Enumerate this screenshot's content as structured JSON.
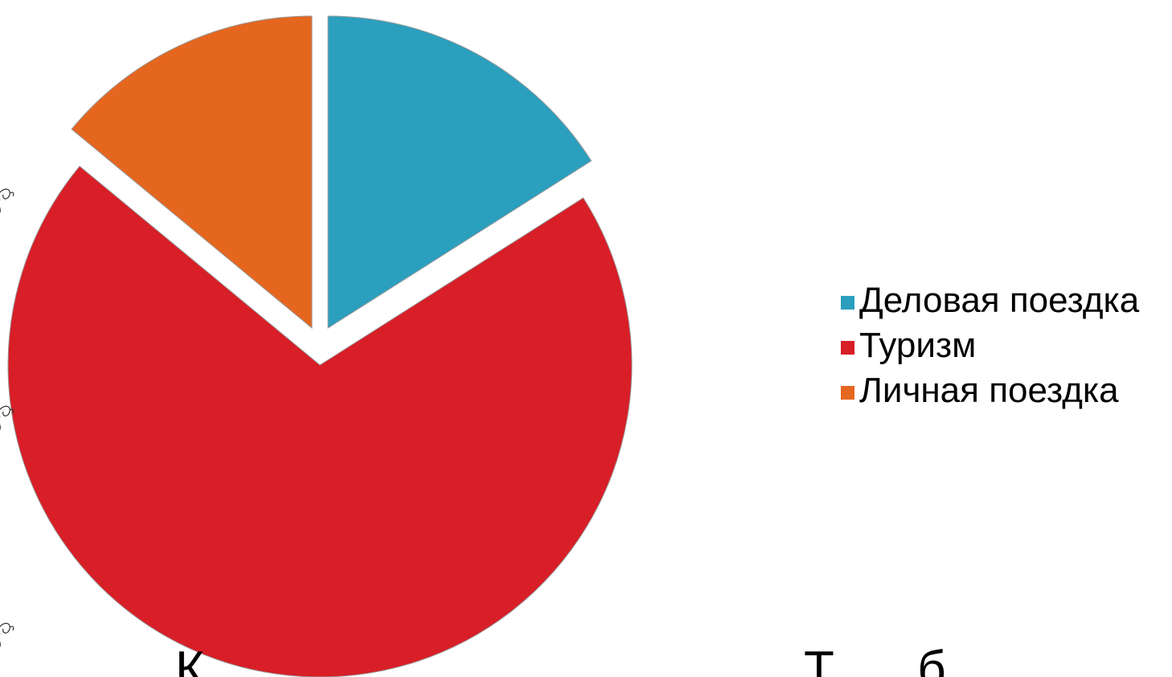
{
  "chart_data": {
    "type": "pie",
    "exploded": true,
    "start_angle_deg": 0,
    "direction": "clockwise",
    "slices": [
      {
        "label": "Деловая поездка",
        "value": 16,
        "color": "#2b9fbe"
      },
      {
        "label": "Туризм",
        "value": 70,
        "color": "#d81e27"
      },
      {
        "label": "Личная поездка",
        "value": 14,
        "color": "#e5661f"
      }
    ],
    "legend_position": "right"
  },
  "bottom_text": {
    "left_fragment": "К",
    "right_fragment": "Т      б"
  },
  "decoration": {
    "doodle_icon": "curl-doodle-icon"
  }
}
